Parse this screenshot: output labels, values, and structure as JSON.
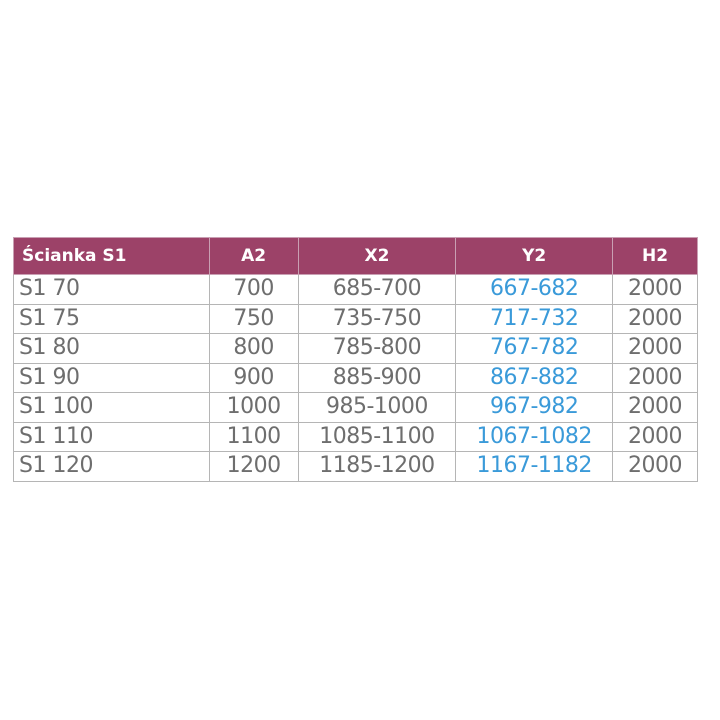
{
  "headers": [
    "Ścianka S1",
    "A2",
    "X2",
    "Y2",
    "H2"
  ],
  "rows": [
    [
      "S1 70",
      "700",
      "685-700",
      "667-682",
      "2000"
    ],
    [
      "S1 75",
      "750",
      "735-750",
      "717-732",
      "2000"
    ],
    [
      "S1 80",
      "800",
      "785-800",
      "767-782",
      "2000"
    ],
    [
      "S1 90",
      "900",
      "885-900",
      "867-882",
      "2000"
    ],
    [
      "S1 100",
      "1000",
      "985-1000",
      "967-982",
      "2000"
    ],
    [
      "S1 110",
      "1100",
      "1085-1100",
      "1067-1082",
      "2000"
    ],
    [
      "S1 120",
      "1200",
      "1185-1200",
      "1167-1182",
      "2000"
    ]
  ],
  "colors": {
    "header_bg": "#9c4268",
    "text": "#6e6e6e",
    "highlight": "#3a9ad9"
  }
}
